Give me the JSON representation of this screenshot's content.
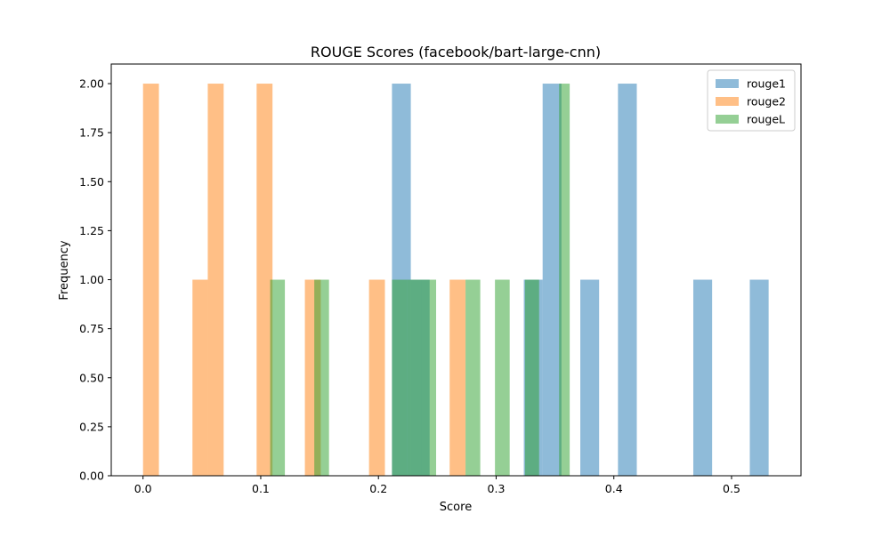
{
  "chart_data": {
    "type": "bar",
    "title": "ROUGE Scores (facebook/bart-large-cnn)",
    "xlabel": "Score",
    "ylabel": "Frequency",
    "xlim": [
      -0.027,
      0.559
    ],
    "ylim": [
      0,
      2.1
    ],
    "xticks": [
      "0.0",
      "0.1",
      "0.2",
      "0.3",
      "0.4",
      "0.5"
    ],
    "yticks": [
      "0.00",
      "0.25",
      "0.50",
      "0.75",
      "1.00",
      "1.25",
      "1.50",
      "1.75",
      "2.00"
    ],
    "legend_position": "top-right",
    "grid": false,
    "series": [
      {
        "name": "rouge1",
        "color": "#1f77b4",
        "bins": [
          {
            "x0": 0.2115,
            "x1": 0.2275,
            "count": 2
          },
          {
            "x0": 0.2275,
            "x1": 0.2435,
            "count": 1
          },
          {
            "x0": 0.3235,
            "x1": 0.3395,
            "count": 1
          },
          {
            "x0": 0.3395,
            "x1": 0.3555,
            "count": 2
          },
          {
            "x0": 0.3715,
            "x1": 0.3875,
            "count": 1
          },
          {
            "x0": 0.4035,
            "x1": 0.4195,
            "count": 2
          },
          {
            "x0": 0.4675,
            "x1": 0.4835,
            "count": 1
          },
          {
            "x0": 0.5155,
            "x1": 0.5315,
            "count": 1
          }
        ]
      },
      {
        "name": "rouge2",
        "color": "#ff7f0e",
        "bins": [
          {
            "x0": 0.0,
            "x1": 0.0135,
            "count": 2
          },
          {
            "x0": 0.042,
            "x1": 0.055,
            "count": 1
          },
          {
            "x0": 0.055,
            "x1": 0.0685,
            "count": 2
          },
          {
            "x0": 0.0965,
            "x1": 0.11,
            "count": 2
          },
          {
            "x0": 0.1375,
            "x1": 0.151,
            "count": 1
          },
          {
            "x0": 0.192,
            "x1": 0.2055,
            "count": 1
          },
          {
            "x0": 0.2605,
            "x1": 0.274,
            "count": 1
          }
        ]
      },
      {
        "name": "rougeL",
        "color": "#2ca02c",
        "bins": [
          {
            "x0": 0.108,
            "x1": 0.1205,
            "count": 1
          },
          {
            "x0": 0.1455,
            "x1": 0.158,
            "count": 1
          },
          {
            "x0": 0.2115,
            "x1": 0.2245,
            "count": 1
          },
          {
            "x0": 0.2245,
            "x1": 0.2365,
            "count": 1
          },
          {
            "x0": 0.2365,
            "x1": 0.249,
            "count": 1
          },
          {
            "x0": 0.274,
            "x1": 0.2865,
            "count": 1
          },
          {
            "x0": 0.299,
            "x1": 0.3115,
            "count": 1
          },
          {
            "x0": 0.3245,
            "x1": 0.3365,
            "count": 1
          },
          {
            "x0": 0.3535,
            "x1": 0.3625,
            "count": 2
          }
        ]
      }
    ]
  }
}
